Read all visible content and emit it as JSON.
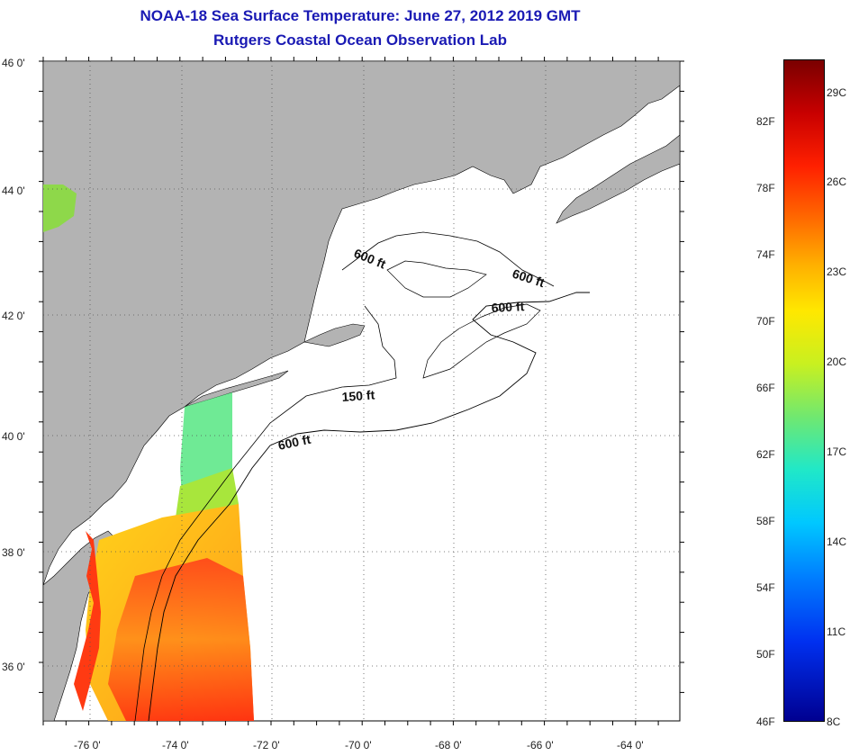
{
  "title": "NOAA-18 Sea Surface Temperature:  June 27, 2012 2019 GMT",
  "subtitle": "Rutgers Coastal Ocean Observation Lab",
  "map": {
    "lat_labels": [
      "46 0'",
      "44 0'",
      "42 0'",
      "40 0'",
      "38 0'",
      "36 0'"
    ],
    "lon_labels": [
      "-76 0'",
      "-74 0'",
      "-72 0'",
      "-70 0'",
      "-68 0'",
      "-66 0'",
      "-64 0'"
    ],
    "contour_labels": [
      "600 ft",
      "600 ft",
      "600 ft",
      "150 ft",
      "600 ft"
    ],
    "colors": {
      "land": "#b3b3b3",
      "water": "#ffffff",
      "coast": "#000000"
    }
  },
  "colorbar": {
    "fahrenheit": [
      "82F",
      "78F",
      "74F",
      "70F",
      "66F",
      "62F",
      "58F",
      "54F",
      "50F",
      "46F"
    ],
    "celsius": [
      "29C",
      "26C",
      "23C",
      "20C",
      "17C",
      "14C",
      "11C",
      "8C"
    ]
  }
}
